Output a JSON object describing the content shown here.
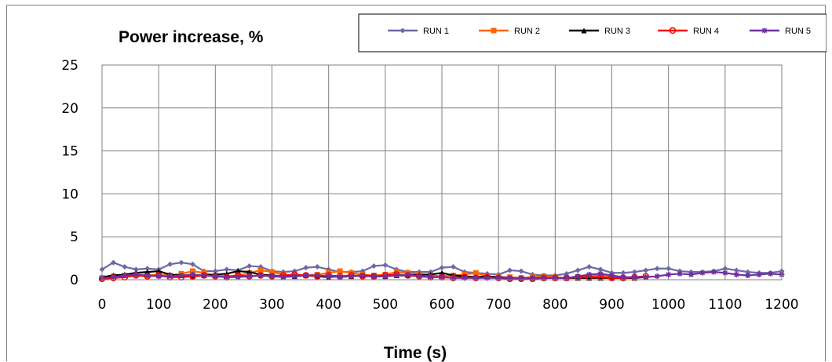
{
  "chart_data": {
    "type": "line",
    "title": "Power increase, %",
    "xlabel": "Time (s)",
    "ylabel": "",
    "xlim": [
      0,
      1200
    ],
    "ylim": [
      0,
      25
    ],
    "xticks": [
      0,
      100,
      200,
      300,
      400,
      500,
      600,
      700,
      800,
      900,
      1000,
      1100,
      1200
    ],
    "yticks": [
      0,
      5,
      10,
      15,
      20,
      25
    ],
    "grid": true,
    "legend_position": "top",
    "series": [
      {
        "name": "RUN 1",
        "color": "#6a6aa6",
        "marker": "diamond",
        "x": [
          0,
          20,
          40,
          60,
          80,
          100,
          120,
          140,
          160,
          180,
          200,
          220,
          240,
          260,
          280,
          300,
          320,
          340,
          360,
          380,
          400,
          420,
          440,
          460,
          480,
          500,
          520,
          540,
          560,
          580,
          600,
          620,
          640,
          660,
          680,
          700,
          720,
          740,
          760,
          780,
          800,
          820,
          840,
          860,
          880,
          900,
          920,
          940,
          960,
          980,
          1000,
          1020,
          1040,
          1060,
          1080,
          1100,
          1120,
          1140,
          1160,
          1180,
          1200
        ],
        "y": [
          1.2,
          2.0,
          1.5,
          1.2,
          1.3,
          1.2,
          1.8,
          2.0,
          1.8,
          1.0,
          1.0,
          1.2,
          1.1,
          1.6,
          1.5,
          1.0,
          0.9,
          1.0,
          1.4,
          1.5,
          1.2,
          0.9,
          0.9,
          1.0,
          1.6,
          1.7,
          1.2,
          0.9,
          0.9,
          0.9,
          1.4,
          1.5,
          0.9,
          0.8,
          0.7,
          0.6,
          1.1,
          1.0,
          0.6,
          0.5,
          0.5,
          0.7,
          1.1,
          1.5,
          1.2,
          0.8,
          0.8,
          0.9,
          1.1,
          1.3,
          1.3,
          1.0,
          0.9,
          0.9,
          1.0,
          1.3,
          1.1,
          0.9,
          0.8,
          0.8,
          1.0
        ]
      },
      {
        "name": "RUN 2",
        "color": "#ff6600",
        "marker": "square",
        "x": [
          0,
          20,
          40,
          60,
          80,
          100,
          120,
          140,
          160,
          180,
          200,
          220,
          240,
          260,
          280,
          300,
          320,
          340,
          360,
          380,
          400,
          420,
          440,
          460,
          480,
          500,
          520,
          540,
          560,
          580,
          600,
          620,
          640,
          660,
          680,
          700,
          720,
          740,
          760,
          780,
          800,
          820,
          840,
          860,
          880,
          900
        ],
        "y": [
          0.2,
          0.4,
          0.5,
          0.6,
          0.5,
          0.6,
          0.5,
          0.7,
          1.0,
          0.8,
          0.5,
          0.4,
          0.5,
          0.8,
          1.1,
          0.9,
          0.6,
          0.5,
          0.5,
          0.6,
          0.8,
          1.0,
          0.8,
          0.6,
          0.5,
          0.6,
          0.9,
          0.8,
          0.6,
          0.5,
          0.4,
          0.5,
          0.6,
          0.8,
          0.4,
          0.3,
          0.3,
          0.2,
          0.3,
          0.4,
          0.3,
          0.2,
          0.3,
          0.4,
          0.5,
          0.3
        ]
      },
      {
        "name": "RUN 3",
        "color": "#000000",
        "marker": "triangle",
        "x": [
          0,
          20,
          40,
          60,
          80,
          100,
          120,
          140,
          160,
          180,
          200,
          220,
          240,
          260,
          280,
          300,
          320,
          340,
          360,
          380,
          400,
          420,
          440,
          460,
          480,
          500,
          520,
          540,
          560,
          580,
          600,
          620,
          640,
          660,
          680,
          700,
          720,
          740,
          760,
          780,
          800,
          820,
          840,
          860,
          880,
          900,
          920,
          940,
          960
        ],
        "y": [
          0.3,
          0.5,
          0.6,
          0.8,
          0.9,
          1.0,
          0.6,
          0.5,
          0.4,
          0.5,
          0.6,
          0.7,
          1.0,
          0.9,
          0.6,
          0.5,
          0.4,
          0.4,
          0.5,
          0.4,
          0.3,
          0.4,
          0.4,
          0.5,
          0.4,
          0.4,
          0.5,
          0.5,
          0.6,
          0.6,
          0.8,
          0.5,
          0.4,
          0.3,
          0.4,
          0.3,
          0.2,
          0.2,
          0.2,
          0.2,
          0.2,
          0.2,
          0.2,
          0.2,
          0.2,
          0.2,
          0.2,
          0.2,
          0.3
        ]
      },
      {
        "name": "RUN 4",
        "color": "#ff0000",
        "marker": "circle",
        "x": [
          0,
          20,
          40,
          60,
          80,
          100,
          120,
          140,
          160,
          180,
          200,
          220,
          240,
          260,
          280,
          300,
          320,
          340,
          360,
          380,
          400,
          420,
          440,
          460,
          480,
          500,
          520,
          540,
          560,
          580,
          600,
          620,
          640,
          660,
          680,
          700,
          720,
          740,
          760,
          780,
          800,
          820,
          840,
          860,
          880,
          900,
          920,
          940,
          960
        ],
        "y": [
          0.1,
          0.2,
          0.3,
          0.5,
          0.4,
          0.5,
          0.3,
          0.3,
          0.4,
          0.5,
          0.4,
          0.3,
          0.5,
          0.4,
          0.5,
          0.4,
          0.5,
          0.6,
          0.5,
          0.4,
          0.5,
          0.4,
          0.5,
          0.4,
          0.4,
          0.5,
          0.6,
          0.5,
          0.4,
          0.3,
          0.3,
          0.2,
          0.3,
          0.2,
          0.3,
          0.2,
          0.1,
          0.1,
          0.1,
          0.2,
          0.2,
          0.2,
          0.3,
          0.3,
          0.3,
          0.2,
          0.2,
          0.3,
          0.4
        ]
      },
      {
        "name": "RUN 5",
        "color": "#7030a0",
        "marker": "star",
        "x": [
          0,
          20,
          40,
          60,
          80,
          100,
          120,
          140,
          160,
          180,
          200,
          220,
          240,
          260,
          280,
          300,
          320,
          340,
          360,
          380,
          400,
          420,
          440,
          460,
          480,
          500,
          520,
          540,
          560,
          580,
          600,
          620,
          640,
          660,
          680,
          700,
          720,
          740,
          760,
          780,
          800,
          820,
          840,
          860,
          880,
          900,
          920,
          940,
          960,
          980,
          1000,
          1020,
          1040,
          1060,
          1080,
          1100,
          1120,
          1140,
          1160,
          1180,
          1200
        ],
        "y": [
          0.2,
          0.3,
          0.5,
          0.6,
          0.5,
          0.4,
          0.4,
          0.5,
          0.6,
          0.5,
          0.4,
          0.3,
          0.3,
          0.4,
          0.5,
          0.4,
          0.3,
          0.4,
          0.5,
          0.5,
          0.4,
          0.3,
          0.4,
          0.5,
          0.4,
          0.4,
          0.5,
          0.6,
          0.4,
          0.3,
          0.3,
          0.2,
          0.2,
          0.2,
          0.2,
          0.2,
          0.2,
          0.2,
          0.2,
          0.2,
          0.2,
          0.2,
          0.4,
          0.6,
          0.7,
          0.5,
          0.3,
          0.3,
          0.3,
          0.4,
          0.6,
          0.7,
          0.6,
          0.8,
          0.9,
          0.8,
          0.6,
          0.5,
          0.6,
          0.7,
          0.6
        ]
      }
    ]
  }
}
